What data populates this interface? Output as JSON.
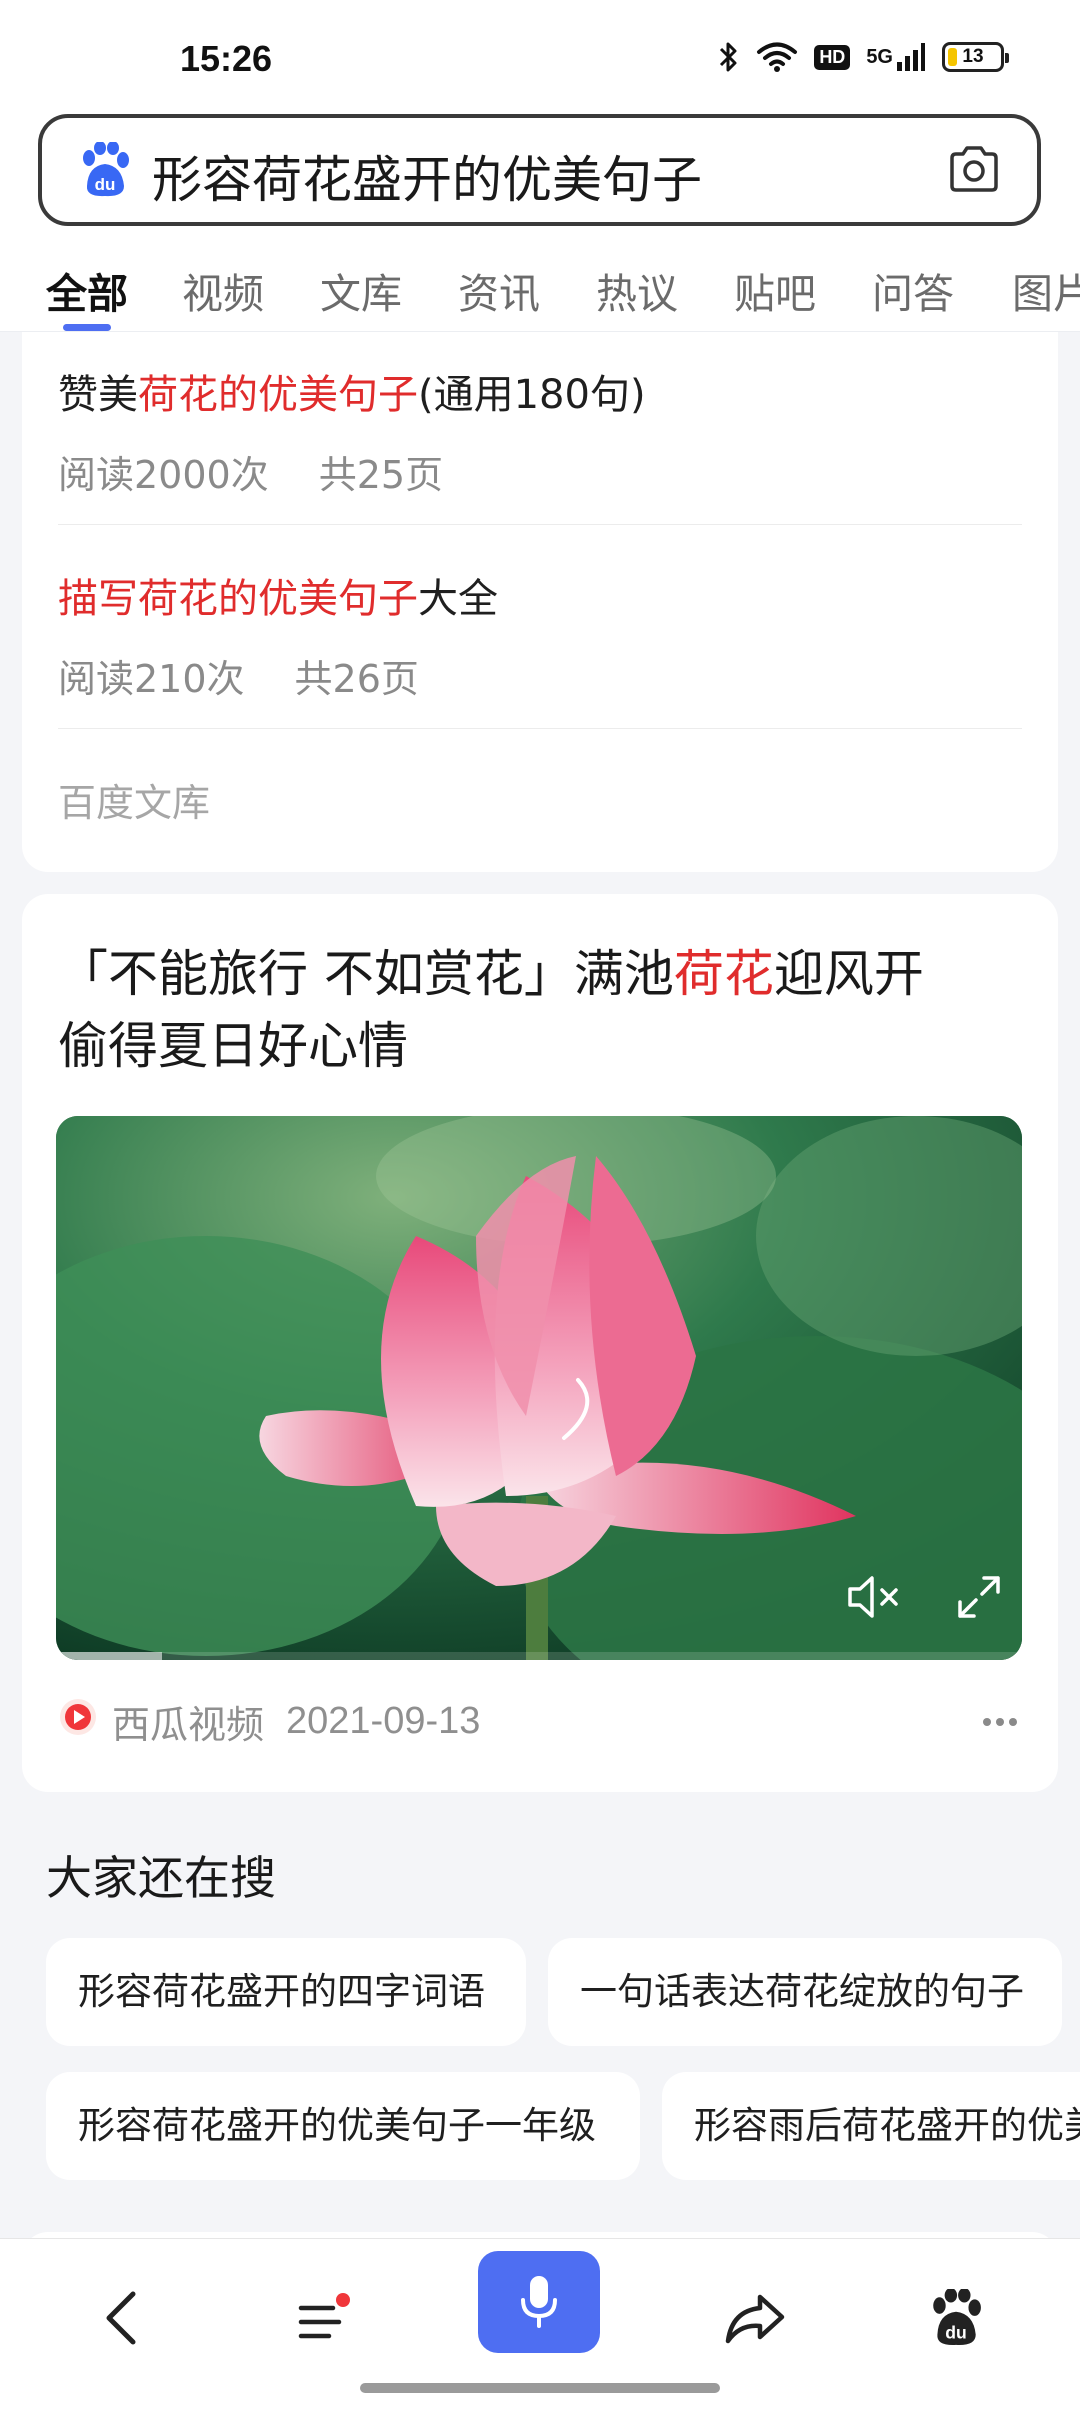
{
  "status_bar": {
    "time": "15:26",
    "battery_level": "13",
    "network": "5G",
    "hd_label": "HD",
    "icons": [
      "bluetooth-icon",
      "wifi-icon",
      "hd-icon",
      "signal-icon",
      "battery-icon"
    ]
  },
  "search": {
    "query": "形容荷花盛开的优美句子",
    "logo_icon": "baidu-paw-icon",
    "camera_icon": "camera-icon"
  },
  "tabs": [
    {
      "label": "全部",
      "active": true
    },
    {
      "label": "视频",
      "active": false
    },
    {
      "label": "文库",
      "active": false
    },
    {
      "label": "资讯",
      "active": false
    },
    {
      "label": "热议",
      "active": false
    },
    {
      "label": "贴吧",
      "active": false
    },
    {
      "label": "问答",
      "active": false
    },
    {
      "label": "图片",
      "active": false
    }
  ],
  "wenku_card": {
    "items": [
      {
        "title_prefix": "赞美",
        "title_highlight": "荷花的优美句子",
        "title_suffix": "(通用180句)",
        "reads": "阅读2000次",
        "pages": "共25页"
      },
      {
        "title_prefix": "",
        "title_highlight": "描写荷花的优美句子",
        "title_suffix": "大全",
        "reads": "阅读210次",
        "pages": "共26页"
      }
    ],
    "source": "百度文库"
  },
  "video_card": {
    "title_part1": "「不能旅行 不如赏花」满池",
    "title_highlight": "荷花",
    "title_part2": "迎风开",
    "title_line2": "偷得夏日好心情",
    "source_name": "西瓜视频",
    "date": "2021-09-13",
    "progress": 0.11
  },
  "related": {
    "title": "大家还在搜",
    "chips": [
      "形容荷花盛开的四字词语",
      "一句话表达荷花绽放的句子",
      "形容荷花盛开的优美句子一年级",
      "形容雨后荷花盛开的优美句子"
    ]
  },
  "bottom_nav": {
    "items": [
      "back-icon",
      "menu-icon",
      "microphone-icon",
      "share-icon",
      "baidu-paw-icon"
    ]
  },
  "colors": {
    "accent": "#4e6ef2",
    "highlight": "#e02c2c",
    "background": "#f4f5f8"
  }
}
